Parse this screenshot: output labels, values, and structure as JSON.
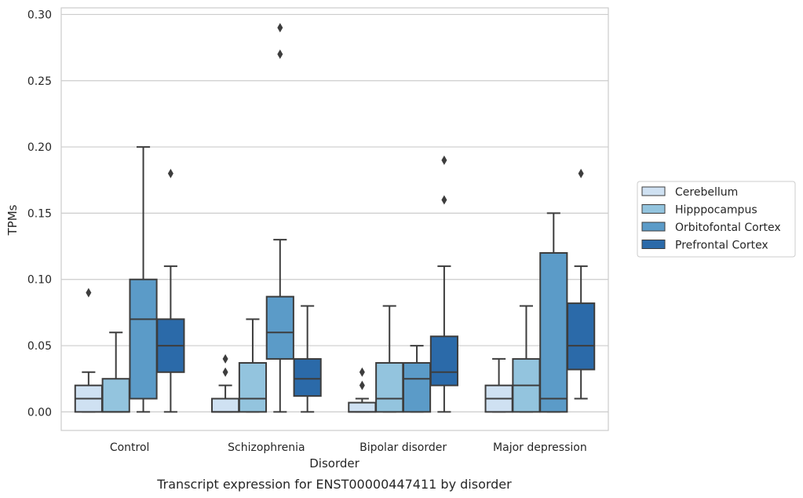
{
  "caption": "Transcript expression for ENST00000447411 by disorder",
  "chart_data": {
    "type": "box",
    "xlabel": "Disorder",
    "ylabel": "TPMs",
    "ylim": [
      -0.014,
      0.305
    ],
    "yticks": [
      "0.00",
      "0.05",
      "0.10",
      "0.15",
      "0.20",
      "0.25",
      "0.30"
    ],
    "categories": [
      "Control",
      "Schizophrenia",
      "Bipolar disorder",
      "Major depression"
    ],
    "grid": "horizontal",
    "legend_position": "right",
    "series": [
      {
        "name": "Cerebellum",
        "color": "#cfe1f2",
        "boxes": [
          {
            "whislo": 0.0,
            "q1": 0.0,
            "med": 0.01,
            "q3": 0.02,
            "whishi": 0.03,
            "fliers": [
              0.09
            ]
          },
          {
            "whislo": 0.0,
            "q1": 0.0,
            "med": 0.0,
            "q3": 0.01,
            "whishi": 0.02,
            "fliers": [
              0.03,
              0.04
            ]
          },
          {
            "whislo": 0.0,
            "q1": 0.0,
            "med": 0.0,
            "q3": 0.007,
            "whishi": 0.01,
            "fliers": [
              0.02,
              0.03
            ]
          },
          {
            "whislo": 0.0,
            "q1": 0.0,
            "med": 0.01,
            "q3": 0.02,
            "whishi": 0.04,
            "fliers": []
          }
        ]
      },
      {
        "name": "Hipppocampus",
        "color": "#93c4de",
        "boxes": [
          {
            "whislo": 0.0,
            "q1": 0.0,
            "med": 0.0,
            "q3": 0.025,
            "whishi": 0.06,
            "fliers": []
          },
          {
            "whislo": 0.0,
            "q1": 0.0,
            "med": 0.01,
            "q3": 0.037,
            "whishi": 0.07,
            "fliers": []
          },
          {
            "whislo": 0.0,
            "q1": 0.0,
            "med": 0.01,
            "q3": 0.037,
            "whishi": 0.08,
            "fliers": []
          },
          {
            "whislo": 0.0,
            "q1": 0.0,
            "med": 0.02,
            "q3": 0.04,
            "whishi": 0.08,
            "fliers": []
          }
        ]
      },
      {
        "name": "Orbitofontal Cortex",
        "color": "#5b9bc8",
        "boxes": [
          {
            "whislo": 0.0,
            "q1": 0.01,
            "med": 0.07,
            "q3": 0.1,
            "whishi": 0.2,
            "fliers": []
          },
          {
            "whislo": 0.0,
            "q1": 0.04,
            "med": 0.06,
            "q3": 0.087,
            "whishi": 0.13,
            "fliers": [
              0.27,
              0.29
            ]
          },
          {
            "whislo": 0.0,
            "q1": 0.0,
            "med": 0.025,
            "q3": 0.037,
            "whishi": 0.05,
            "fliers": []
          },
          {
            "whislo": 0.0,
            "q1": 0.0,
            "med": 0.01,
            "q3": 0.12,
            "whishi": 0.15,
            "fliers": []
          }
        ]
      },
      {
        "name": "Prefrontal Cortex",
        "color": "#2b6aa9",
        "boxes": [
          {
            "whislo": 0.0,
            "q1": 0.03,
            "med": 0.05,
            "q3": 0.07,
            "whishi": 0.11,
            "fliers": [
              0.18
            ]
          },
          {
            "whislo": 0.0,
            "q1": 0.012,
            "med": 0.025,
            "q3": 0.04,
            "whishi": 0.08,
            "fliers": []
          },
          {
            "whislo": 0.0,
            "q1": 0.02,
            "med": 0.03,
            "q3": 0.057,
            "whishi": 0.11,
            "fliers": [
              0.16,
              0.19
            ]
          },
          {
            "whislo": 0.01,
            "q1": 0.032,
            "med": 0.05,
            "q3": 0.082,
            "whishi": 0.11,
            "fliers": [
              0.18
            ]
          }
        ]
      }
    ]
  }
}
